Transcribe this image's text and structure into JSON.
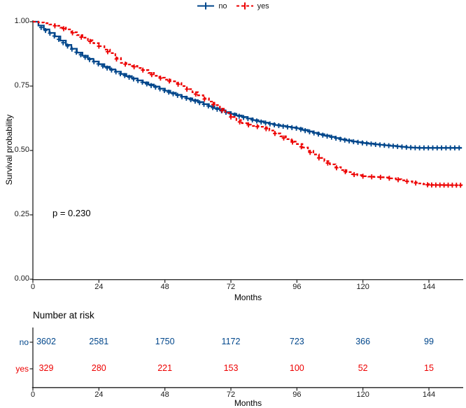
{
  "legend": {
    "items": [
      {
        "label": "no",
        "color": "#00468B",
        "style": "solid"
      },
      {
        "label": "yes",
        "color": "#ED0000",
        "style": "dashed"
      }
    ]
  },
  "chart_data": {
    "type": "line",
    "subtype": "kaplan-meier-survival",
    "title": "",
    "xlabel": "Months",
    "ylabel": "Survival probability",
    "xlim": [
      0,
      156
    ],
    "ylim": [
      0,
      1
    ],
    "x_ticks": [
      0,
      24,
      48,
      72,
      96,
      120,
      144
    ],
    "y_ticks": [
      {
        "label": "1.00",
        "value": 1.0
      },
      {
        "label": "0.75",
        "value": 0.75
      },
      {
        "label": "0.50",
        "value": 0.5
      },
      {
        "label": "0.25",
        "value": 0.25
      },
      {
        "label": "0.00",
        "value": 0.0
      }
    ],
    "p_value_label": "p = 0.230",
    "grid": false,
    "legend_position": "top",
    "series": [
      {
        "name": "no",
        "color": "#00468B",
        "style": "solid",
        "points": [
          [
            0,
            1.0
          ],
          [
            4,
            0.97
          ],
          [
            8,
            0.943
          ],
          [
            12,
            0.91
          ],
          [
            16,
            0.88
          ],
          [
            20,
            0.856
          ],
          [
            24,
            0.835
          ],
          [
            28,
            0.815
          ],
          [
            32,
            0.797
          ],
          [
            36,
            0.78
          ],
          [
            40,
            0.764
          ],
          [
            44,
            0.748
          ],
          [
            48,
            0.732
          ],
          [
            52,
            0.716
          ],
          [
            56,
            0.702
          ],
          [
            60,
            0.688
          ],
          [
            64,
            0.672
          ],
          [
            68,
            0.656
          ],
          [
            72,
            0.642
          ],
          [
            76,
            0.63
          ],
          [
            80,
            0.618
          ],
          [
            84,
            0.608
          ],
          [
            88,
            0.599
          ],
          [
            92,
            0.592
          ],
          [
            96,
            0.586
          ],
          [
            100,
            0.574
          ],
          [
            104,
            0.563
          ],
          [
            108,
            0.553
          ],
          [
            112,
            0.543
          ],
          [
            116,
            0.535
          ],
          [
            120,
            0.529
          ],
          [
            124,
            0.524
          ],
          [
            128,
            0.52
          ],
          [
            132,
            0.516
          ],
          [
            136,
            0.512
          ],
          [
            140,
            0.51
          ],
          [
            156,
            0.51
          ]
        ],
        "censor_marks": [
          {
            "from": 3,
            "to": 155.5,
            "step": 1.6
          }
        ]
      },
      {
        "name": "yes",
        "color": "#ED0000",
        "style": "dashed",
        "points": [
          [
            0,
            1.0
          ],
          [
            4,
            0.994
          ],
          [
            8,
            0.984
          ],
          [
            12,
            0.97
          ],
          [
            16,
            0.948
          ],
          [
            20,
            0.928
          ],
          [
            24,
            0.905
          ],
          [
            28,
            0.878
          ],
          [
            32,
            0.84
          ],
          [
            36,
            0.828
          ],
          [
            40,
            0.812
          ],
          [
            44,
            0.79
          ],
          [
            48,
            0.775
          ],
          [
            52,
            0.762
          ],
          [
            56,
            0.738
          ],
          [
            60,
            0.714
          ],
          [
            64,
            0.69
          ],
          [
            68,
            0.662
          ],
          [
            72,
            0.63
          ],
          [
            76,
            0.606
          ],
          [
            80,
            0.595
          ],
          [
            84,
            0.589
          ],
          [
            88,
            0.566
          ],
          [
            92,
            0.544
          ],
          [
            96,
            0.525
          ],
          [
            100,
            0.498
          ],
          [
            104,
            0.471
          ],
          [
            108,
            0.446
          ],
          [
            112,
            0.424
          ],
          [
            116,
            0.408
          ],
          [
            120,
            0.4
          ],
          [
            124,
            0.397
          ],
          [
            128,
            0.395
          ],
          [
            132,
            0.388
          ],
          [
            136,
            0.38
          ],
          [
            140,
            0.372
          ],
          [
            144,
            0.366
          ],
          [
            156,
            0.365
          ]
        ],
        "censor_marks": [
          {
            "from": 8,
            "to": 142,
            "step": 3.2
          },
          {
            "from": 143.5,
            "to": 155.5,
            "step": 1.5
          }
        ]
      }
    ]
  },
  "risk_table": {
    "title": "Number at risk",
    "xlabel": "Months",
    "x_ticks": [
      0,
      24,
      48,
      72,
      96,
      120,
      144
    ],
    "rows": [
      {
        "label": "no",
        "color": "#00468B",
        "values": [
          "3602",
          "2581",
          "1750",
          "1172",
          "723",
          "366",
          "99"
        ]
      },
      {
        "label": "yes",
        "color": "#ED0000",
        "values": [
          "329",
          "280",
          "221",
          "153",
          "100",
          "52",
          "15"
        ]
      }
    ]
  }
}
